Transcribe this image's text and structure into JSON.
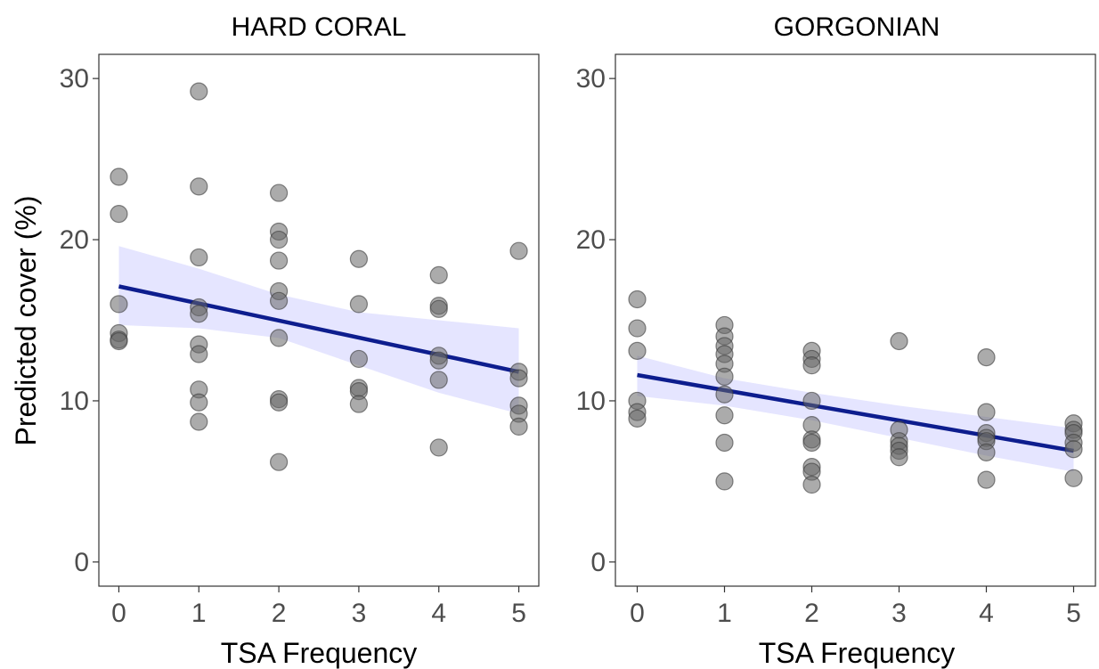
{
  "chart_data": [
    {
      "type": "scatter",
      "title": "HARD CORAL",
      "xlabel": "TSA Frequency",
      "ylabel": "Predicted cover (%)",
      "xlim": [
        -0.25,
        5.25
      ],
      "ylim": [
        -1.5,
        31.5
      ],
      "xticks": [
        0,
        1,
        2,
        3,
        4,
        5
      ],
      "yticks": [
        0,
        10,
        20,
        30
      ],
      "grid": false,
      "points": [
        {
          "x": 0,
          "y": 23.9
        },
        {
          "x": 0,
          "y": 21.6
        },
        {
          "x": 0,
          "y": 16.0
        },
        {
          "x": 0,
          "y": 14.2
        },
        {
          "x": 0,
          "y": 13.8
        },
        {
          "x": 0,
          "y": 13.7
        },
        {
          "x": 1,
          "y": 29.2
        },
        {
          "x": 1,
          "y": 23.3
        },
        {
          "x": 1,
          "y": 18.9
        },
        {
          "x": 1,
          "y": 15.8
        },
        {
          "x": 1,
          "y": 15.4
        },
        {
          "x": 1,
          "y": 13.5
        },
        {
          "x": 1,
          "y": 12.9
        },
        {
          "x": 1,
          "y": 10.7
        },
        {
          "x": 1,
          "y": 9.9
        },
        {
          "x": 1,
          "y": 8.7
        },
        {
          "x": 2,
          "y": 22.9
        },
        {
          "x": 2,
          "y": 20.5
        },
        {
          "x": 2,
          "y": 20.0
        },
        {
          "x": 2,
          "y": 18.7
        },
        {
          "x": 2,
          "y": 16.8
        },
        {
          "x": 2,
          "y": 16.2
        },
        {
          "x": 2,
          "y": 13.9
        },
        {
          "x": 2,
          "y": 10.1
        },
        {
          "x": 2,
          "y": 9.9
        },
        {
          "x": 2,
          "y": 6.2
        },
        {
          "x": 3,
          "y": 18.8
        },
        {
          "x": 3,
          "y": 16.0
        },
        {
          "x": 3,
          "y": 12.6
        },
        {
          "x": 3,
          "y": 10.8
        },
        {
          "x": 3,
          "y": 10.6
        },
        {
          "x": 3,
          "y": 9.8
        },
        {
          "x": 4,
          "y": 17.8
        },
        {
          "x": 4,
          "y": 15.9
        },
        {
          "x": 4,
          "y": 15.7
        },
        {
          "x": 4,
          "y": 12.8
        },
        {
          "x": 4,
          "y": 12.5
        },
        {
          "x": 4,
          "y": 11.3
        },
        {
          "x": 4,
          "y": 7.1
        },
        {
          "x": 5,
          "y": 19.3
        },
        {
          "x": 5,
          "y": 11.8
        },
        {
          "x": 5,
          "y": 11.4
        },
        {
          "x": 5,
          "y": 9.7
        },
        {
          "x": 5,
          "y": 9.2
        },
        {
          "x": 5,
          "y": 8.4
        }
      ],
      "trend": {
        "x": [
          0,
          5
        ],
        "y": [
          17.1,
          11.8
        ]
      },
      "ci_band": {
        "x": [
          0,
          1,
          2,
          3,
          4,
          5
        ],
        "lower": [
          14.7,
          14.5,
          13.9,
          12.2,
          10.5,
          9.2
        ],
        "upper": [
          19.6,
          18.2,
          16.6,
          15.5,
          15.0,
          14.5
        ]
      },
      "colors": {
        "points": "#666666",
        "trend": "#0d1d8e",
        "band": "#dcdcff"
      }
    },
    {
      "type": "scatter",
      "title": "GORGONIAN",
      "xlabel": "TSA Frequency",
      "ylabel": "",
      "xlim": [
        -0.25,
        5.25
      ],
      "ylim": [
        -1.5,
        31.5
      ],
      "xticks": [
        0,
        1,
        2,
        3,
        4,
        5
      ],
      "yticks": [
        0,
        10,
        20,
        30
      ],
      "grid": false,
      "points": [
        {
          "x": 0,
          "y": 16.3
        },
        {
          "x": 0,
          "y": 14.5
        },
        {
          "x": 0,
          "y": 13.1
        },
        {
          "x": 0,
          "y": 10.0
        },
        {
          "x": 0,
          "y": 9.3
        },
        {
          "x": 0,
          "y": 8.9
        },
        {
          "x": 1,
          "y": 14.7
        },
        {
          "x": 1,
          "y": 14.0
        },
        {
          "x": 1,
          "y": 13.4
        },
        {
          "x": 1,
          "y": 12.9
        },
        {
          "x": 1,
          "y": 12.3
        },
        {
          "x": 1,
          "y": 11.5
        },
        {
          "x": 1,
          "y": 10.4
        },
        {
          "x": 1,
          "y": 9.1
        },
        {
          "x": 1,
          "y": 7.4
        },
        {
          "x": 1,
          "y": 5.0
        },
        {
          "x": 2,
          "y": 13.1
        },
        {
          "x": 2,
          "y": 12.6
        },
        {
          "x": 2,
          "y": 12.2
        },
        {
          "x": 2,
          "y": 10.0
        },
        {
          "x": 2,
          "y": 8.5
        },
        {
          "x": 2,
          "y": 7.6
        },
        {
          "x": 2,
          "y": 7.4
        },
        {
          "x": 2,
          "y": 5.9
        },
        {
          "x": 2,
          "y": 5.6
        },
        {
          "x": 2,
          "y": 4.8
        },
        {
          "x": 3,
          "y": 13.7
        },
        {
          "x": 3,
          "y": 8.2
        },
        {
          "x": 3,
          "y": 7.5
        },
        {
          "x": 3,
          "y": 7.2
        },
        {
          "x": 3,
          "y": 6.9
        },
        {
          "x": 3,
          "y": 6.5
        },
        {
          "x": 4,
          "y": 12.7
        },
        {
          "x": 4,
          "y": 9.3
        },
        {
          "x": 4,
          "y": 8.0
        },
        {
          "x": 4,
          "y": 7.7
        },
        {
          "x": 4,
          "y": 7.5
        },
        {
          "x": 4,
          "y": 6.8
        },
        {
          "x": 4,
          "y": 5.1
        },
        {
          "x": 5,
          "y": 8.6
        },
        {
          "x": 5,
          "y": 8.2
        },
        {
          "x": 5,
          "y": 8.0
        },
        {
          "x": 5,
          "y": 7.4
        },
        {
          "x": 5,
          "y": 7.0
        },
        {
          "x": 5,
          "y": 5.2
        }
      ],
      "trend": {
        "x": [
          0,
          5
        ],
        "y": [
          11.6,
          6.9
        ]
      },
      "ci_band": {
        "x": [
          0,
          1,
          2,
          3,
          4,
          5
        ],
        "lower": [
          10.3,
          9.7,
          8.8,
          7.7,
          6.6,
          5.6
        ],
        "upper": [
          12.8,
          11.4,
          10.5,
          9.7,
          9.0,
          8.3
        ]
      },
      "colors": {
        "points": "#666666",
        "trend": "#0d1d8e",
        "band": "#dcdcff"
      }
    }
  ]
}
